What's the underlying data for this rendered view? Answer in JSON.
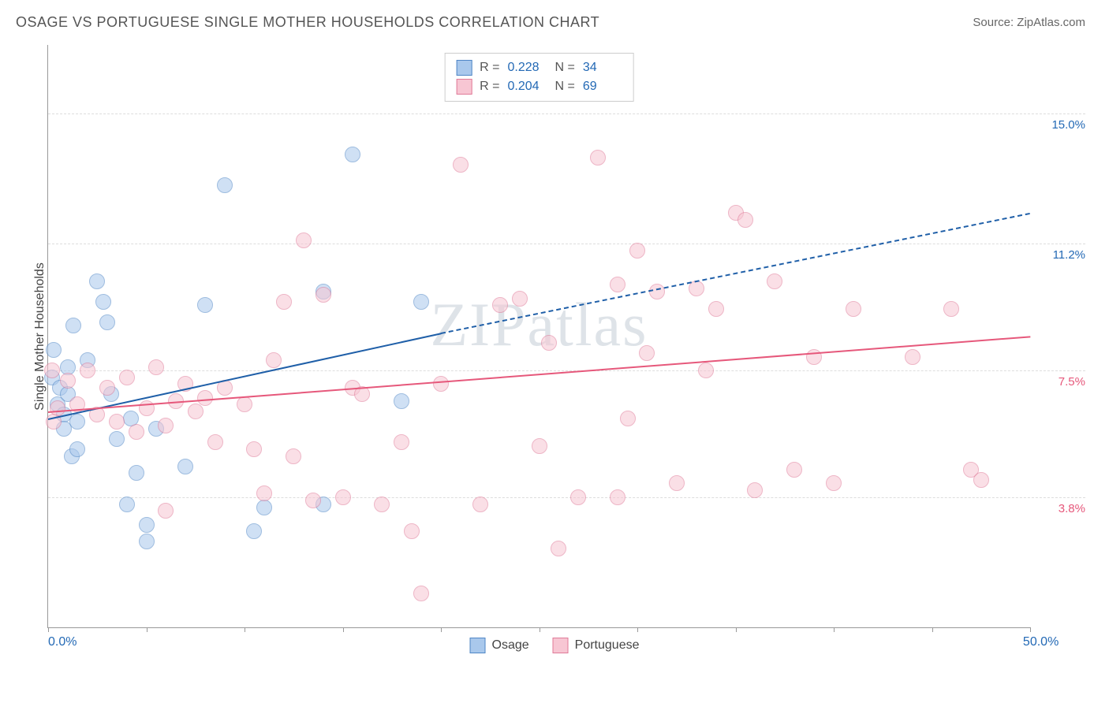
{
  "header": {
    "title": "OSAGE VS PORTUGUESE SINGLE MOTHER HOUSEHOLDS CORRELATION CHART",
    "source_prefix": "Source: ",
    "source_name": "ZipAtlas.com"
  },
  "chart": {
    "type": "scatter",
    "watermark": "ZIPatlas",
    "yaxis_title": "Single Mother Households",
    "xlim": [
      0,
      50
    ],
    "ylim": [
      0,
      17
    ],
    "background_color": "#ffffff",
    "grid_color": "#dddddd",
    "axis_color": "#999999",
    "xticks": [
      0,
      5,
      10,
      15,
      20,
      25,
      30,
      35,
      40,
      45,
      50
    ],
    "xaxis_labels": [
      {
        "pos": 0,
        "text": "0.0%",
        "color": "#2369b5"
      },
      {
        "pos": 50,
        "text": "50.0%",
        "color": "#2369b5"
      }
    ],
    "yticks": [
      {
        "val": 3.8,
        "label": "3.8%",
        "color": "#e6587b"
      },
      {
        "val": 7.5,
        "label": "7.5%",
        "color": "#e6587b"
      },
      {
        "val": 11.2,
        "label": "11.2%",
        "color": "#2369b5"
      },
      {
        "val": 15.0,
        "label": "15.0%",
        "color": "#2369b5"
      }
    ],
    "point_radius": 10,
    "point_opacity": 0.55,
    "point_border_width": 1.2,
    "series": [
      {
        "name": "Osage",
        "color_fill": "#a9c8ec",
        "color_stroke": "#4f86c6",
        "R": "0.228",
        "N": "34",
        "trend": {
          "x1": 0,
          "y1": 6.1,
          "x2": 20,
          "y2": 8.6,
          "x2_ext": 50,
          "y2_ext": 12.1,
          "color": "#1f5fa8",
          "width": 2.5
        },
        "points": [
          [
            0.2,
            7.3
          ],
          [
            0.3,
            8.1
          ],
          [
            0.5,
            6.5
          ],
          [
            0.6,
            7.0
          ],
          [
            0.8,
            6.2
          ],
          [
            0.8,
            5.8
          ],
          [
            1.0,
            7.6
          ],
          [
            1.0,
            6.8
          ],
          [
            1.2,
            5.0
          ],
          [
            1.3,
            8.8
          ],
          [
            1.5,
            6.0
          ],
          [
            1.5,
            5.2
          ],
          [
            2.0,
            7.8
          ],
          [
            2.5,
            10.1
          ],
          [
            2.8,
            9.5
          ],
          [
            3.0,
            8.9
          ],
          [
            3.2,
            6.8
          ],
          [
            3.5,
            5.5
          ],
          [
            4.0,
            3.6
          ],
          [
            4.2,
            6.1
          ],
          [
            4.5,
            4.5
          ],
          [
            5.0,
            3.0
          ],
          [
            5.0,
            2.5
          ],
          [
            5.5,
            5.8
          ],
          [
            7.0,
            4.7
          ],
          [
            8.0,
            9.4
          ],
          [
            9.0,
            12.9
          ],
          [
            10.5,
            2.8
          ],
          [
            11.0,
            3.5
          ],
          [
            14.0,
            9.8
          ],
          [
            15.5,
            13.8
          ],
          [
            18.0,
            6.6
          ],
          [
            19.0,
            9.5
          ],
          [
            14.0,
            3.6
          ]
        ]
      },
      {
        "name": "Portuguese",
        "color_fill": "#f7c6d3",
        "color_stroke": "#e07a98",
        "R": "0.204",
        "N": "69",
        "trend": {
          "x1": 0,
          "y1": 6.3,
          "x2": 50,
          "y2": 8.5,
          "color": "#e6587b",
          "width": 2.5
        },
        "points": [
          [
            0.2,
            7.5
          ],
          [
            0.5,
            6.4
          ],
          [
            1.0,
            7.2
          ],
          [
            1.5,
            6.5
          ],
          [
            2.0,
            7.5
          ],
          [
            2.5,
            6.2
          ],
          [
            3.0,
            7.0
          ],
          [
            3.5,
            6.0
          ],
          [
            4.0,
            7.3
          ],
          [
            4.5,
            5.7
          ],
          [
            5.0,
            6.4
          ],
          [
            5.5,
            7.6
          ],
          [
            6.0,
            5.9
          ],
          [
            6.5,
            6.6
          ],
          [
            7.0,
            7.1
          ],
          [
            7.5,
            6.3
          ],
          [
            8.0,
            6.7
          ],
          [
            8.5,
            5.4
          ],
          [
            9.0,
            7.0
          ],
          [
            10.0,
            6.5
          ],
          [
            10.5,
            5.2
          ],
          [
            11.0,
            3.9
          ],
          [
            12.0,
            9.5
          ],
          [
            12.5,
            5.0
          ],
          [
            13.0,
            11.3
          ],
          [
            13.5,
            3.7
          ],
          [
            14.0,
            9.7
          ],
          [
            15.0,
            3.8
          ],
          [
            15.5,
            7.0
          ],
          [
            16.0,
            6.8
          ],
          [
            17.0,
            3.6
          ],
          [
            18.0,
            5.4
          ],
          [
            18.5,
            2.8
          ],
          [
            19.0,
            1.0
          ],
          [
            20.0,
            7.1
          ],
          [
            21.0,
            13.5
          ],
          [
            22.0,
            3.6
          ],
          [
            23.0,
            9.4
          ],
          [
            24.0,
            9.6
          ],
          [
            25.0,
            5.3
          ],
          [
            25.5,
            8.3
          ],
          [
            26.0,
            2.3
          ],
          [
            27.0,
            3.8
          ],
          [
            28.0,
            13.7
          ],
          [
            29.0,
            3.8
          ],
          [
            29.5,
            6.1
          ],
          [
            30.0,
            11.0
          ],
          [
            30.5,
            8.0
          ],
          [
            31.0,
            9.8
          ],
          [
            32.0,
            4.2
          ],
          [
            33.0,
            9.9
          ],
          [
            33.5,
            7.5
          ],
          [
            34.0,
            9.3
          ],
          [
            35.0,
            12.1
          ],
          [
            35.5,
            11.9
          ],
          [
            36.0,
            4.0
          ],
          [
            37.0,
            10.1
          ],
          [
            38.0,
            4.6
          ],
          [
            39.0,
            7.9
          ],
          [
            40.0,
            4.2
          ],
          [
            41.0,
            9.3
          ],
          [
            44.0,
            7.9
          ],
          [
            46.0,
            9.3
          ],
          [
            47.0,
            4.6
          ],
          [
            47.5,
            4.3
          ],
          [
            29.0,
            10.0
          ],
          [
            11.5,
            7.8
          ],
          [
            6.0,
            3.4
          ],
          [
            0.3,
            6.0
          ]
        ]
      }
    ],
    "legend_bottom": [
      {
        "label": "Osage",
        "fill": "#a9c8ec",
        "stroke": "#4f86c6"
      },
      {
        "label": "Portuguese",
        "fill": "#f7c6d3",
        "stroke": "#e07a98"
      }
    ],
    "stat_value_color": "#2369b5",
    "stat_label_color": "#555555"
  }
}
